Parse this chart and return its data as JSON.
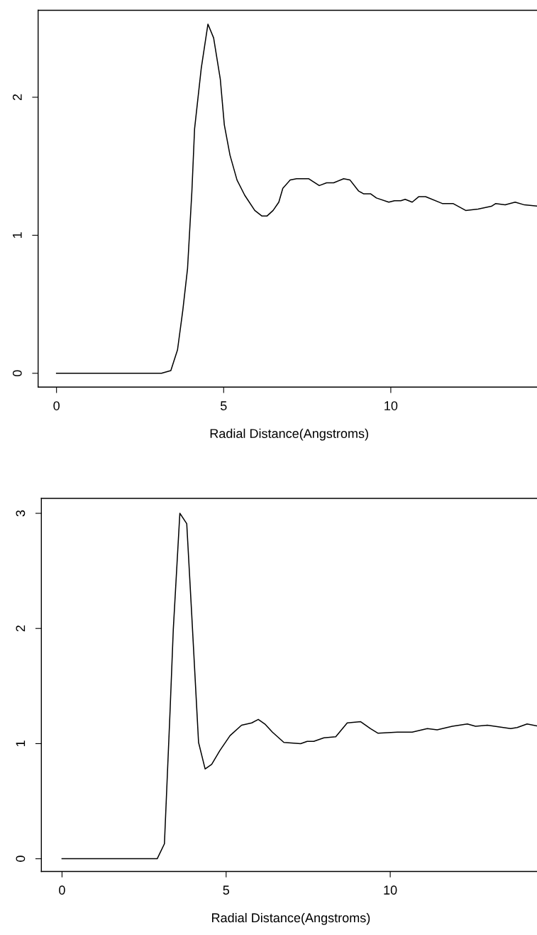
{
  "chart_data": [
    {
      "type": "line",
      "xlabel": "Radial Distance(Angstroms)",
      "xlim": [
        -0.55,
        14.47
      ],
      "ylim": [
        -0.1,
        2.63
      ],
      "xticks": [
        0,
        5,
        10
      ],
      "yticks": [
        0,
        1,
        2
      ],
      "grid": false,
      "marker": "none",
      "line_style": "solid",
      "series": [
        {
          "color": "#000000",
          "x": [
            0,
            1,
            2,
            3.0,
            3.14,
            3.42,
            3.62,
            3.78,
            3.92,
            4.05,
            4.13,
            4.33,
            4.53,
            4.7,
            4.9,
            5.02,
            5.19,
            5.4,
            5.63,
            5.93,
            6.14,
            6.3,
            6.48,
            6.65,
            6.77,
            6.99,
            7.18,
            7.54,
            7.86,
            8.08,
            8.29,
            8.59,
            8.78,
            9.04,
            9.19,
            9.4,
            9.57,
            9.94,
            10.11,
            10.3,
            10.43,
            10.64,
            10.84,
            11.04,
            11.54,
            11.86,
            12.24,
            12.61,
            13.01,
            13.14,
            13.42,
            13.72,
            14.0,
            14.45
          ],
          "values": [
            0,
            0,
            0,
            0,
            0,
            0.02,
            0.17,
            0.46,
            0.76,
            1.32,
            1.77,
            2.21,
            2.53,
            2.43,
            2.13,
            1.8,
            1.58,
            1.4,
            1.29,
            1.18,
            1.14,
            1.14,
            1.18,
            1.24,
            1.34,
            1.4,
            1.41,
            1.41,
            1.36,
            1.38,
            1.38,
            1.41,
            1.4,
            1.32,
            1.3,
            1.3,
            1.27,
            1.24,
            1.25,
            1.25,
            1.26,
            1.24,
            1.28,
            1.28,
            1.23,
            1.23,
            1.18,
            1.19,
            1.21,
            1.23,
            1.22,
            1.24,
            1.22,
            1.21
          ]
        }
      ]
    },
    {
      "type": "line",
      "xlabel": "Radial Distance(Angstroms)",
      "xlim": [
        -0.63,
        14.57
      ],
      "ylim": [
        -0.11,
        3.13
      ],
      "xticks": [
        0,
        5,
        10
      ],
      "yticks": [
        0,
        1,
        2,
        3
      ],
      "grid": false,
      "marker": "none",
      "line_style": "solid",
      "series": [
        {
          "color": "#000000",
          "x": [
            0,
            1,
            2,
            2.9,
            3.12,
            3.29,
            3.39,
            3.59,
            3.8,
            3.95,
            4.16,
            4.36,
            4.56,
            4.81,
            5.12,
            5.47,
            5.78,
            5.98,
            6.18,
            6.41,
            6.76,
            7.27,
            7.47,
            7.67,
            7.98,
            8.34,
            8.69,
            9.1,
            9.4,
            9.63,
            10.22,
            10.67,
            11.13,
            11.43,
            11.89,
            12.35,
            12.6,
            12.96,
            13.67,
            13.87,
            14.17,
            14.55
          ],
          "values": [
            0,
            0,
            0,
            0,
            0.13,
            1.27,
            1.99,
            3.0,
            2.91,
            2.13,
            1.01,
            0.78,
            0.82,
            0.94,
            1.07,
            1.16,
            1.18,
            1.21,
            1.17,
            1.1,
            1.01,
            1.0,
            1.02,
            1.02,
            1.05,
            1.06,
            1.18,
            1.19,
            1.13,
            1.09,
            1.1,
            1.1,
            1.13,
            1.12,
            1.15,
            1.17,
            1.15,
            1.16,
            1.13,
            1.14,
            1.17,
            1.15
          ]
        }
      ]
    }
  ]
}
